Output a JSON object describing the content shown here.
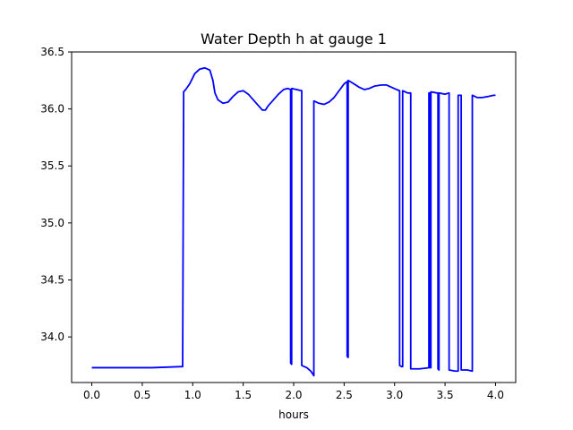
{
  "chart_data": {
    "type": "line",
    "title": "Water Depth h at gauge 1",
    "xlabel": "hours",
    "ylabel": "",
    "xlim": [
      -0.2,
      4.2
    ],
    "ylim": [
      33.6,
      36.5
    ],
    "x_ticks": [
      0.0,
      0.5,
      1.0,
      1.5,
      2.0,
      2.5,
      3.0,
      3.5,
      4.0
    ],
    "x_tick_labels": [
      "0.0",
      "0.5",
      "1.0",
      "1.5",
      "2.0",
      "2.5",
      "3.0",
      "3.5",
      "4.0"
    ],
    "y_ticks": [
      34.0,
      34.5,
      35.0,
      35.5,
      36.0,
      36.5
    ],
    "y_tick_labels": [
      "34.0",
      "34.5",
      "35.0",
      "35.5",
      "36.0",
      "36.5"
    ],
    "grid": false,
    "series": [
      {
        "color": "#0000ff",
        "points": [
          [
            0.0,
            33.73
          ],
          [
            0.3,
            33.73
          ],
          [
            0.6,
            33.73
          ],
          [
            0.9,
            33.74
          ],
          [
            0.91,
            36.15
          ],
          [
            0.93,
            36.17
          ],
          [
            0.97,
            36.22
          ],
          [
            1.02,
            36.31
          ],
          [
            1.07,
            36.35
          ],
          [
            1.12,
            36.36
          ],
          [
            1.17,
            36.34
          ],
          [
            1.2,
            36.25
          ],
          [
            1.22,
            36.14
          ],
          [
            1.25,
            36.08
          ],
          [
            1.3,
            36.05
          ],
          [
            1.35,
            36.06
          ],
          [
            1.4,
            36.11
          ],
          [
            1.45,
            36.15
          ],
          [
            1.5,
            36.16
          ],
          [
            1.55,
            36.13
          ],
          [
            1.6,
            36.08
          ],
          [
            1.65,
            36.03
          ],
          [
            1.69,
            35.99
          ],
          [
            1.72,
            35.99
          ],
          [
            1.75,
            36.03
          ],
          [
            1.8,
            36.08
          ],
          [
            1.85,
            36.13
          ],
          [
            1.9,
            36.17
          ],
          [
            1.94,
            36.18
          ],
          [
            1.97,
            36.17
          ],
          [
            1.97,
            33.77
          ],
          [
            1.98,
            33.76
          ],
          [
            1.98,
            36.18
          ],
          [
            2.03,
            36.17
          ],
          [
            2.08,
            36.16
          ],
          [
            2.08,
            33.75
          ],
          [
            2.13,
            33.73
          ],
          [
            2.17,
            33.7
          ],
          [
            2.2,
            33.66
          ],
          [
            2.2,
            36.07
          ],
          [
            2.25,
            36.05
          ],
          [
            2.3,
            36.04
          ],
          [
            2.35,
            36.06
          ],
          [
            2.4,
            36.1
          ],
          [
            2.45,
            36.16
          ],
          [
            2.5,
            36.22
          ],
          [
            2.53,
            36.24
          ],
          [
            2.53,
            33.83
          ],
          [
            2.54,
            33.82
          ],
          [
            2.54,
            36.25
          ],
          [
            2.58,
            36.23
          ],
          [
            2.65,
            36.19
          ],
          [
            2.7,
            36.17
          ],
          [
            2.75,
            36.18
          ],
          [
            2.8,
            36.2
          ],
          [
            2.87,
            36.21
          ],
          [
            2.92,
            36.21
          ],
          [
            2.97,
            36.19
          ],
          [
            3.02,
            36.17
          ],
          [
            3.05,
            36.16
          ],
          [
            3.05,
            33.75
          ],
          [
            3.07,
            33.74
          ],
          [
            3.08,
            33.74
          ],
          [
            3.08,
            36.16
          ],
          [
            3.13,
            36.14
          ],
          [
            3.16,
            36.14
          ],
          [
            3.16,
            33.72
          ],
          [
            3.25,
            33.72
          ],
          [
            3.34,
            33.73
          ],
          [
            3.34,
            36.14
          ],
          [
            3.35,
            36.14
          ],
          [
            3.35,
            33.73
          ],
          [
            3.36,
            33.73
          ],
          [
            3.36,
            36.15
          ],
          [
            3.42,
            36.14
          ],
          [
            3.43,
            36.14
          ],
          [
            3.43,
            33.72
          ],
          [
            3.44,
            33.71
          ],
          [
            3.44,
            36.14
          ],
          [
            3.5,
            36.13
          ],
          [
            3.54,
            36.14
          ],
          [
            3.54,
            33.71
          ],
          [
            3.6,
            33.7
          ],
          [
            3.63,
            33.7
          ],
          [
            3.63,
            36.12
          ],
          [
            3.66,
            36.12
          ],
          [
            3.66,
            33.71
          ],
          [
            3.72,
            33.71
          ],
          [
            3.77,
            33.7
          ],
          [
            3.77,
            36.12
          ],
          [
            3.82,
            36.1
          ],
          [
            3.87,
            36.1
          ],
          [
            3.93,
            36.11
          ],
          [
            3.98,
            36.12
          ],
          [
            4.0,
            36.12
          ]
        ]
      }
    ]
  }
}
